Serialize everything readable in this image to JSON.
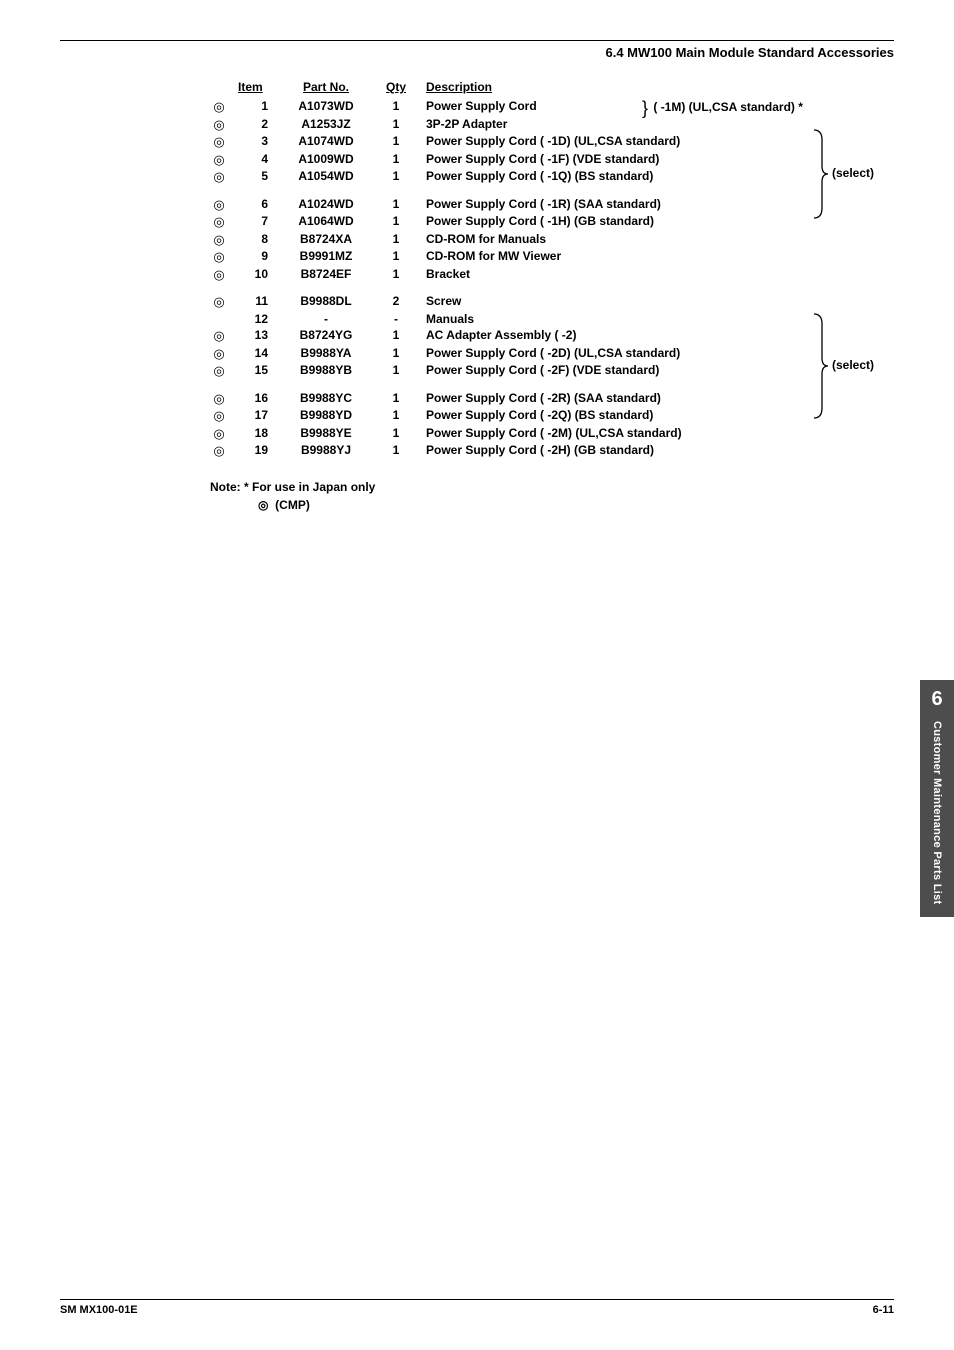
{
  "section_title": "6.4  MW100 Main Module Standard Accessories",
  "headers": {
    "item": "Item",
    "part": "Part  No.",
    "qty": "Qty",
    "desc": "Description"
  },
  "rows_g1": [
    {
      "cmp": "◎",
      "item": "1",
      "part": "A1073WD",
      "qty": "1",
      "desc": "Power Supply Cord"
    },
    {
      "cmp": "◎",
      "item": "2",
      "part": "A1253JZ",
      "qty": "1",
      "desc": "3P-2P Adapter"
    },
    {
      "cmp": "◎",
      "item": "3",
      "part": "A1074WD",
      "qty": "1",
      "desc": "Power Supply Cord ( -1D) (UL,CSA standard)"
    },
    {
      "cmp": "◎",
      "item": "4",
      "part": "A1009WD",
      "qty": "1",
      "desc": "Power Supply Cord ( -1F) (VDE standard)"
    },
    {
      "cmp": "◎",
      "item": "5",
      "part": "A1054WD",
      "qty": "1",
      "desc": "Power Supply Cord ( -1Q) (BS standard)"
    }
  ],
  "brace1_text": "( -1M) (UL,CSA standard) *",
  "rows_g2": [
    {
      "cmp": "◎",
      "item": "6",
      "part": "A1024WD",
      "qty": "1",
      "desc": "Power Supply Cord ( -1R) (SAA standard)"
    },
    {
      "cmp": "◎",
      "item": "7",
      "part": "A1064WD",
      "qty": "1",
      "desc": "Power Supply Cord ( -1H) (GB standard)"
    },
    {
      "cmp": "◎",
      "item": "8",
      "part": "B8724XA",
      "qty": "1",
      "desc": "CD-ROM for Manuals"
    },
    {
      "cmp": "◎",
      "item": "9",
      "part": "B9991MZ",
      "qty": "1",
      "desc": "CD-ROM for MW Viewer"
    },
    {
      "cmp": "◎",
      "item": "10",
      "part": "B8724EF",
      "qty": "1",
      "desc": "Bracket"
    }
  ],
  "rows_g3": [
    {
      "cmp": "◎",
      "item": "11",
      "part": "B9988DL",
      "qty": "2",
      "desc": "Screw"
    },
    {
      "cmp": "",
      "item": "12",
      "part": "-",
      "qty": "-",
      "desc": "Manuals"
    },
    {
      "cmp": "◎",
      "item": "13",
      "part": "B8724YG",
      "qty": "1",
      "desc": "AC Adapter Assembly ( -2)"
    },
    {
      "cmp": "◎",
      "item": "14",
      "part": "B9988YA",
      "qty": "1",
      "desc": "Power Supply Cord ( -2D) (UL,CSA standard)"
    },
    {
      "cmp": "◎",
      "item": "15",
      "part": "B9988YB",
      "qty": "1",
      "desc": "Power Supply Cord ( -2F) (VDE standard)"
    }
  ],
  "rows_g4": [
    {
      "cmp": "◎",
      "item": "16",
      "part": "B9988YC",
      "qty": "1",
      "desc": "Power Supply Cord ( -2R) (SAA standard)"
    },
    {
      "cmp": "◎",
      "item": "17",
      "part": "B9988YD",
      "qty": "1",
      "desc": "Power Supply Cord ( -2Q) (BS standard)"
    },
    {
      "cmp": "◎",
      "item": "18",
      "part": "B9988YE",
      "qty": "1",
      "desc": "Power Supply Cord ( -2M) (UL,CSA standard)"
    },
    {
      "cmp": "◎",
      "item": "19",
      "part": "B9988YJ",
      "qty": "1",
      "desc": "Power Supply Cord ( -2H) (GB standard)"
    }
  ],
  "select1": "(select)",
  "select2": "(select)",
  "note_line1": "Note:  *  For use in Japan only",
  "note_cmp_symbol": "◎",
  "note_cmp_label": "(CMP)",
  "sidebar": {
    "num": "6",
    "text": "Customer Maintenance Parts List"
  },
  "footer": {
    "left": "SM MX100-01E",
    "right": "6-11"
  }
}
